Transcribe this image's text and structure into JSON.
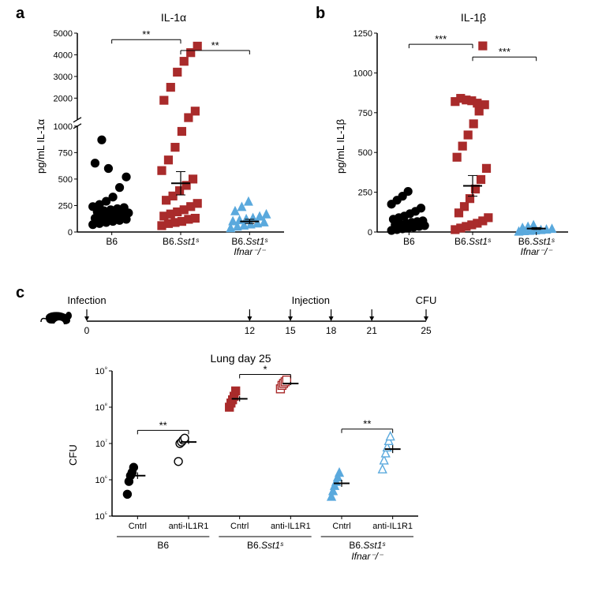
{
  "panelA": {
    "label": "a",
    "title": "IL-1α",
    "ylabel": "pg/mL IL-1α",
    "type": "scatter",
    "categories": [
      "B6",
      "B6.Sst1ˢ",
      "B6.Sst1ˢ\nIfnar⁻/⁻"
    ],
    "colors": [
      "#000000",
      "#a92b2b",
      "#5aa9dd"
    ],
    "markers": [
      "circle",
      "square",
      "triangle"
    ],
    "marker_size": 5,
    "ybreak": {
      "low_max": 1000,
      "low_ticks": [
        0,
        250,
        500,
        750,
        1000
      ],
      "high_min": 1000,
      "high_max": 5000,
      "high_ticks": [
        1000,
        2000,
        3000,
        4000,
        5000
      ]
    },
    "data": {
      "B6": [
        70,
        80,
        90,
        100,
        110,
        120,
        130,
        140,
        150,
        160,
        170,
        180,
        190,
        200,
        210,
        220,
        230,
        240,
        260,
        290,
        330,
        420,
        520,
        650,
        870,
        600
      ],
      "B6.Sst1ˢ": [
        60,
        80,
        90,
        100,
        120,
        130,
        150,
        170,
        190,
        210,
        240,
        270,
        300,
        340,
        390,
        440,
        500,
        580,
        680,
        800,
        950,
        1100,
        1400,
        1900,
        2500,
        3200,
        3700,
        4100,
        4400
      ],
      "B6.Sst1ˢ Ifnar⁻/⁻": [
        40,
        55,
        65,
        75,
        85,
        95,
        105,
        115,
        125,
        135,
        150,
        170,
        200,
        240,
        290
      ]
    },
    "mean_se": {
      "B6": [
        130,
        35
      ],
      "B6.Sst1ˢ": [
        460,
        110
      ],
      "B6.Sst1ˢ Ifnar⁻/⁻": [
        100,
        20
      ]
    },
    "sig": [
      {
        "from": 0,
        "to": 1,
        "label": "**",
        "y": 4700
      },
      {
        "from": 1,
        "to": 2,
        "label": "**",
        "y": 4200
      }
    ]
  },
  "panelB": {
    "label": "b",
    "title": "IL-1β",
    "ylabel": "pg/mL IL-1β",
    "type": "scatter",
    "categories": [
      "B6",
      "B6.Sst1ˢ",
      "B6.Sst1ˢ\nIfnar⁻/⁻"
    ],
    "colors": [
      "#000000",
      "#a92b2b",
      "#5aa9dd"
    ],
    "markers": [
      "circle",
      "square",
      "triangle"
    ],
    "marker_size": 5,
    "ylim": [
      0,
      1250
    ],
    "yticks": [
      0,
      250,
      500,
      750,
      1000,
      1250
    ],
    "data": {
      "B6": [
        10,
        15,
        20,
        25,
        30,
        35,
        40,
        45,
        50,
        55,
        60,
        65,
        70,
        80,
        90,
        100,
        115,
        130,
        150,
        175,
        200,
        225,
        255
      ],
      "B6.Sst1ˢ": [
        15,
        25,
        35,
        45,
        55,
        70,
        90,
        120,
        160,
        210,
        270,
        330,
        400,
        470,
        540,
        610,
        680,
        760,
        800,
        820,
        840,
        830,
        825,
        810,
        1170
      ],
      "B6.Sst1ˢ Ifnar⁻/⁻": [
        5,
        8,
        10,
        12,
        15,
        18,
        22,
        28,
        35,
        45
      ]
    },
    "mean_se": {
      "B6": [
        50,
        15
      ],
      "B6.Sst1ˢ": [
        290,
        65
      ],
      "B6.Sst1ˢ Ifnar⁻/⁻": [
        22,
        6
      ]
    },
    "sig": [
      {
        "from": 0,
        "to": 1,
        "label": "***",
        "y": 1180
      },
      {
        "from": 1,
        "to": 2,
        "label": "***",
        "y": 1100
      }
    ]
  },
  "panelC": {
    "label": "c",
    "timeline": {
      "labels": {
        "start": "Infection",
        "mid": "Injection",
        "end": "CFU"
      },
      "days": [
        0,
        12,
        15,
        18,
        21,
        25
      ]
    },
    "title": "Lung day 25",
    "ylabel": "CFU",
    "type": "scatter",
    "ylim_log": [
      5,
      9
    ],
    "yticks": [
      "10⁵",
      "10⁶",
      "10⁷",
      "10⁸",
      "10⁹"
    ],
    "subcats": [
      "Cntrl",
      "anti-IL1R1"
    ],
    "groups": [
      "B6",
      "B6.Sst1ˢ",
      "B6.Sst1ˢ Ifnar⁻/⁻"
    ],
    "colors": [
      "#000000",
      "#a92b2b",
      "#5aa9dd"
    ],
    "marker_fill": [
      "filled",
      "open",
      "filled",
      "open",
      "filled",
      "open"
    ],
    "marker_shape": [
      "circle",
      "circle",
      "square",
      "square",
      "triangle",
      "triangle"
    ],
    "data": [
      [
        400000.0,
        900000.0,
        1300000.0,
        1600000.0,
        2200000.0
      ],
      [
        3200000.0,
        10000000.0,
        11000000.0,
        12500000.0,
        14000000.0
      ],
      [
        100000000.0,
        130000000.0,
        160000000.0,
        200000000.0,
        280000000.0
      ],
      [
        320000000.0,
        400000000.0,
        450000000.0,
        500000000.0,
        560000000.0
      ],
      [
        350000.0,
        500000.0,
        700000.0,
        900000.0,
        1200000.0,
        1600000.0
      ],
      [
        2000000.0,
        3500000.0,
        5500000.0,
        8000000.0,
        12000000.0,
        16000000.0
      ]
    ],
    "mean_se": [
      [
        1300000.0,
        300000.0
      ],
      [
        11000000.0,
        1500000.0
      ],
      [
        170000000.0,
        30000000.0
      ],
      [
        450000000.0,
        50000000.0
      ],
      [
        800000.0,
        200000.0
      ],
      [
        7000000.0,
        2000000.0
      ]
    ],
    "sig": [
      {
        "from": 0,
        "to": 1,
        "label": "**",
        "y": 23000000.0
      },
      {
        "from": 2,
        "to": 3,
        "label": "*",
        "y": 800000000.0
      },
      {
        "from": 4,
        "to": 5,
        "label": "**",
        "y": 25000000.0
      }
    ]
  },
  "axis_color": "#000000",
  "background_color": "#ffffff"
}
